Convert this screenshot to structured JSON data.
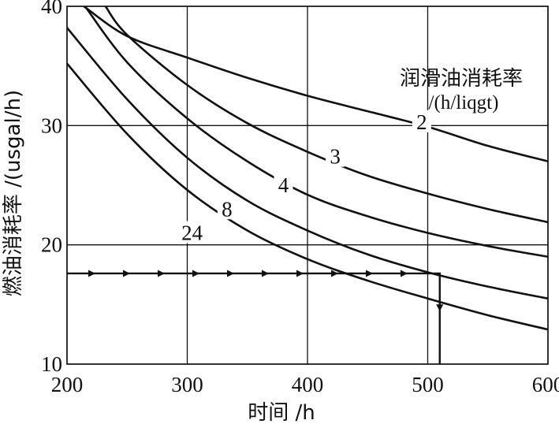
{
  "chart_data": {
    "type": "line",
    "xlabel": "时间 /h",
    "ylabel": "燃油消耗率 /(usgal/h)",
    "xlim": [
      200,
      600
    ],
    "ylim": [
      10,
      40
    ],
    "x_ticks": [
      "200",
      "300",
      "400",
      "500",
      "600"
    ],
    "y_ticks": [
      "10",
      "20",
      "30",
      "40"
    ],
    "grid": true,
    "legend_title": "润滑油消耗率",
    "legend_unit": "/(h/liqgt)",
    "legend_position": "top-right",
    "series": [
      {
        "name": "2",
        "x": [
          214,
          250,
          300,
          350,
          400,
          450,
          500,
          550,
          600
        ],
        "y": [
          40,
          37.5,
          35.7,
          34.0,
          32.5,
          31.2,
          29.9,
          28.3,
          27.0
        ]
      },
      {
        "name": "3",
        "x": [
          232,
          250,
          300,
          350,
          400,
          450,
          500,
          550,
          600
        ],
        "y": [
          40,
          37.6,
          33.4,
          30.2,
          27.8,
          25.8,
          24.3,
          23.0,
          21.9
        ]
      },
      {
        "name": "4",
        "x": [
          215,
          250,
          300,
          350,
          400,
          450,
          500,
          550,
          600
        ],
        "y": [
          40,
          35.3,
          30.6,
          27.0,
          24.2,
          22.4,
          21.0,
          19.9,
          19.0
        ]
      },
      {
        "name": "8",
        "x": [
          200,
          250,
          300,
          350,
          400,
          450,
          500,
          550,
          600
        ],
        "y": [
          38.2,
          32.2,
          27.3,
          23.7,
          21.2,
          19.2,
          17.7,
          16.5,
          15.5
        ]
      },
      {
        "name": "24",
        "x": [
          200,
          250,
          300,
          350,
          400,
          450,
          500,
          550,
          600
        ],
        "y": [
          35.2,
          29.3,
          24.6,
          21.2,
          18.8,
          17.0,
          15.5,
          14.1,
          12.9
        ]
      }
    ],
    "annotation_path": {
      "start": [
        200,
        17.6
      ],
      "corner": [
        510,
        17.6
      ],
      "end": [
        510,
        10
      ]
    }
  }
}
